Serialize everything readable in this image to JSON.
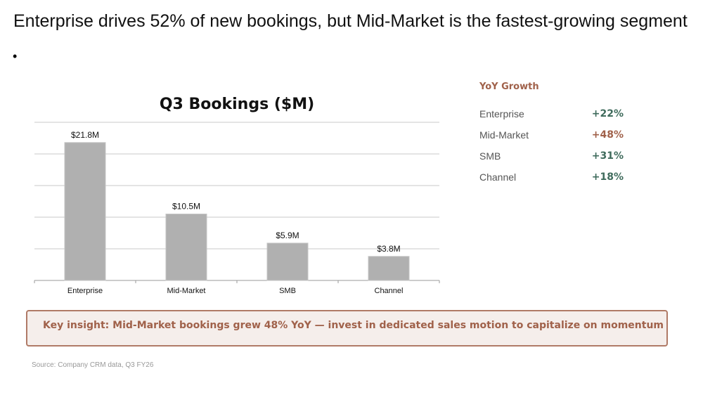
{
  "slide": {
    "title": "Enterprise drives 52% of new bookings, but Mid-Market is the fastest-growing segment",
    "bullet": "•"
  },
  "chart_data": {
    "type": "bar",
    "title": "Q3 Bookings ($M)",
    "categories": [
      "Enterprise",
      "Mid-Market",
      "SMB",
      "Channel"
    ],
    "values": [
      21.8,
      10.5,
      5.9,
      3.8
    ],
    "data_labels": [
      "$21.8M",
      "$10.5M",
      "$5.9M",
      "$3.8M"
    ],
    "ylim": [
      0,
      25
    ],
    "grid": true,
    "ytick_step": 5,
    "bar_color": "#b0b0b0"
  },
  "yoy": {
    "heading": "YoY Growth",
    "rows": [
      {
        "label": "Enterprise",
        "value": "+22%",
        "color": "#3f6b5c"
      },
      {
        "label": "Mid-Market",
        "value": "+48%",
        "color": "#a0614a"
      },
      {
        "label": "SMB",
        "value": "+31%",
        "color": "#3f6b5c"
      },
      {
        "label": "Channel",
        "value": "+18%",
        "color": "#3f6b5c"
      }
    ]
  },
  "insight": "Key insight: Mid-Market bookings grew 48% YoY — invest in dedicated sales motion to capitalize on momentum",
  "source": "Source: Company CRM data, Q3 FY26"
}
